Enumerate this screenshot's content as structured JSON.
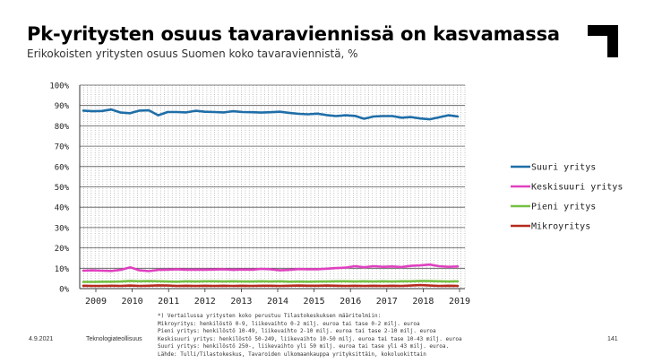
{
  "header": {
    "title": "Pk-yritysten osuus tavaraviennissä on kasvamassa",
    "subtitle": "Erikokoisten yritysten osuus Suomen koko tavaraviennistä, %"
  },
  "footer": {
    "date": "4.9.2021",
    "org": "Teknologiateollisuus",
    "page": "141",
    "notes": [
      "*) Vertailussa yritysten koko perustuu Tilastokeskuksen määritelmiin:",
      "Mikroyritys: henkilöstö 0-9, liikevaihto 0-2 milj. euroa tai tase 0-2 milj. euroa",
      "Pieni yritys: henkilöstö 10-49, liikevaihto 2-10 milj. euroa tai tase 2-10 milj. euroa",
      "Keskisuuri yritys: henkilöstö 50-249, liikevaihto 10-50 milj. euroa tai tase 10-43 milj. euroa",
      "Suuri yritys: henkilöstö 250-, liikevaihto yli 50 milj. euroa tai tase yli 43 milj. euroa.",
      "Lähde: Tulli/Tilastokeskus, Tavaroiden ulkomaankauppa yrityksittäin, kokoluokittain"
    ]
  },
  "chart_data": {
    "type": "line",
    "title": "",
    "xlabel": "",
    "ylabel": "",
    "ylim": [
      0,
      100
    ],
    "y_ticks": [
      "0%",
      "10%",
      "20%",
      "30%",
      "40%",
      "50%",
      "60%",
      "70%",
      "80%",
      "90%",
      "100%"
    ],
    "x_tick_labels": [
      "2009",
      "2010",
      "2011",
      "2012",
      "2013",
      "2014",
      "2015",
      "2016",
      "2017",
      "2018",
      "2019"
    ],
    "grid": "vertical dotted lines per month, horizontal lines per 10%",
    "legend_position": "right",
    "series": [
      {
        "name": "Suuri yritys",
        "color": "#1f6ea8",
        "values": [
          87.5,
          87.2,
          87.3,
          88.0,
          86.5,
          86.2,
          87.5,
          87.6,
          85.2,
          86.8,
          86.8,
          86.6,
          87.4,
          86.9,
          86.8,
          86.6,
          87.2,
          86.8,
          86.7,
          86.5,
          86.7,
          86.9,
          86.4,
          85.9,
          85.7,
          86.0,
          85.3,
          84.8,
          85.2,
          84.9,
          83.5,
          84.6,
          84.8,
          84.8,
          84.0,
          84.3,
          83.6,
          83.2,
          84.2,
          85.2,
          84.6
        ]
      },
      {
        "name": "Keskisuuri yritys",
        "color": "#e040c0",
        "values": [
          8.8,
          9.0,
          8.8,
          8.7,
          9.2,
          10.5,
          9.0,
          8.6,
          9.2,
          9.3,
          9.5,
          9.3,
          9.3,
          9.3,
          9.4,
          9.5,
          9.2,
          9.4,
          9.3,
          9.7,
          9.5,
          9.0,
          9.2,
          9.6,
          9.5,
          9.5,
          9.8,
          10.1,
          10.3,
          11.0,
          10.5,
          11.0,
          10.7,
          10.9,
          10.6,
          11.2,
          11.4,
          11.8,
          11.0,
          10.7,
          10.9
        ]
      },
      {
        "name": "Pieni yritys",
        "color": "#76c043",
        "values": [
          3.3,
          3.3,
          3.4,
          3.4,
          3.5,
          3.8,
          3.6,
          3.7,
          3.6,
          3.5,
          3.4,
          3.6,
          3.5,
          3.6,
          3.6,
          3.5,
          3.6,
          3.5,
          3.5,
          3.6,
          3.5,
          3.6,
          3.4,
          3.5,
          3.4,
          3.5,
          3.5,
          3.6,
          3.6,
          3.5,
          3.6,
          3.5,
          3.6,
          3.5,
          3.6,
          3.6,
          3.8,
          3.7,
          3.6,
          3.5,
          3.6
        ]
      },
      {
        "name": "Mikroyritys",
        "color": "#b52b1e",
        "values": [
          1.4,
          1.3,
          1.3,
          1.4,
          1.3,
          1.5,
          1.3,
          1.4,
          1.6,
          1.5,
          1.3,
          1.4,
          1.3,
          1.4,
          1.3,
          1.4,
          1.3,
          1.4,
          1.3,
          1.4,
          1.4,
          1.3,
          1.4,
          1.5,
          1.4,
          1.4,
          1.5,
          1.4,
          1.3,
          1.4,
          1.3,
          1.4,
          1.3,
          1.4,
          1.3,
          1.5,
          1.7,
          1.5,
          1.3,
          1.4,
          1.3
        ]
      }
    ]
  }
}
